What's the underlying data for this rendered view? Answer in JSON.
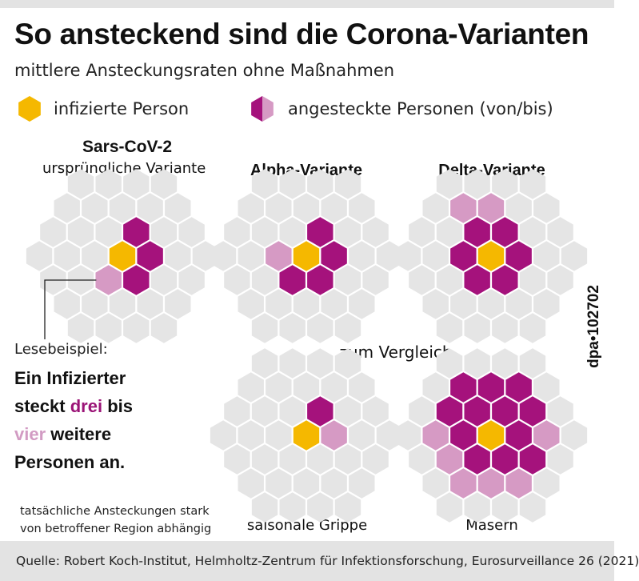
{
  "title": "So ansteckend sind die Corona-Varianten",
  "subtitle": "mittlere Ansteckungsraten ohne Maßnahmen",
  "legend": {
    "infected": "infizierte Person",
    "infected_color": "#f5b800",
    "infected_icon": "yellow-hexagon-icon",
    "contacts": "angesteckte Personen (von/bis)",
    "from_color": "#a5127c",
    "to_color": "#d69ac4",
    "empty_color": "#e5e5e5",
    "contacts_icon": "half-magenta-hexagon-icon"
  },
  "variants": [
    {
      "key": "sars",
      "name": "Sars-CoV-2",
      "sub": "ursprüngliche Variante",
      "from": 3,
      "to": 4
    },
    {
      "key": "alpha",
      "name": "Alpha-Variante",
      "sub": "",
      "from": 4,
      "to": 5
    },
    {
      "key": "delta",
      "name": "Delta-Variante",
      "sub": "",
      "from": 6,
      "to": 8
    },
    {
      "key": "flu",
      "name": "saisonale Grippe",
      "sub": "",
      "from": 1,
      "to": 2
    },
    {
      "key": "measles",
      "name": "Masern",
      "sub": "",
      "from": 12,
      "to": 18
    }
  ],
  "comparison_label": "zum Vergleich",
  "reading": {
    "lead": "Lesebeispiel:",
    "line1": "Ein Infizierter",
    "line2a": "steckt ",
    "line2b": "drei",
    "line2c": " bis",
    "line3a": "vier",
    "line3b": " weitere",
    "line4": "Personen an."
  },
  "note": {
    "line1": "tatsächliche Ansteckungen stark",
    "line2": "von betroffener Region abhängig"
  },
  "credit": "dpa•102702",
  "source": "Quelle: Robert Koch-Institut, Helmholtz-Zentrum für Infektionsforschung, Eurosurveillance 26 (2021)"
}
